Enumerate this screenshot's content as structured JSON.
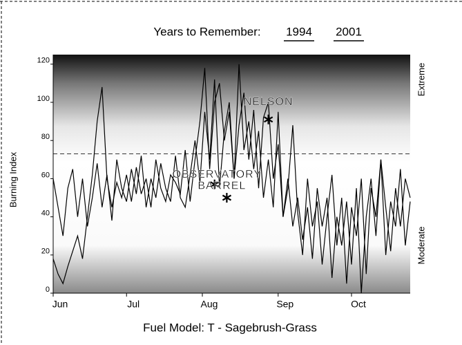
{
  "chart_data": {
    "type": "line",
    "title": "Years to Remember:",
    "ylabel": "Burning Index",
    "xlabel": "Fuel Model: T - Sagebrush-Grass",
    "right_labels": [
      "Extreme",
      "Moderate"
    ],
    "x": [
      0,
      2,
      4,
      6,
      8,
      10,
      12,
      14,
      16,
      18,
      20,
      22,
      24,
      26,
      28,
      30,
      32,
      34,
      36,
      38,
      40,
      42,
      44,
      46,
      48,
      50,
      52,
      54,
      56,
      58,
      60,
      62,
      64,
      66,
      68,
      70,
      72,
      74,
      76,
      78,
      80,
      82,
      84,
      86,
      88,
      90,
      92,
      94,
      96,
      98,
      100,
      102,
      104,
      106,
      108,
      110,
      112,
      114,
      116,
      118,
      120,
      122,
      124,
      126,
      128,
      130,
      132,
      134,
      136,
      138,
      140,
      142,
      144,
      146
    ],
    "series": [
      {
        "name": "1994",
        "color": "#000000",
        "values": [
          18,
          10,
          5,
          14,
          22,
          30,
          18,
          40,
          62,
          90,
          108,
          60,
          45,
          58,
          50,
          62,
          48,
          66,
          52,
          60,
          45,
          70,
          55,
          48,
          62,
          58,
          52,
          75,
          48,
          70,
          90,
          118,
          65,
          100,
          110,
          80,
          95,
          60,
          88,
          105,
          70,
          96,
          55,
          92,
          100,
          60,
          78,
          40,
          55,
          88,
          42,
          20,
          60,
          35,
          48,
          15,
          40,
          62,
          25,
          50,
          5,
          45,
          30,
          60,
          10,
          55,
          40,
          70,
          20,
          48,
          35,
          65,
          25,
          48
        ]
      },
      {
        "name": "2001",
        "color": "#000000",
        "values": [
          60,
          45,
          30,
          55,
          65,
          40,
          60,
          35,
          50,
          68,
          45,
          62,
          38,
          70,
          55,
          48,
          65,
          52,
          72,
          45,
          60,
          50,
          68,
          55,
          48,
          72,
          50,
          45,
          62,
          80,
          58,
          95,
          70,
          112,
          55,
          85,
          100,
          60,
          120,
          75,
          90,
          65,
          85,
          50,
          70,
          45,
          95,
          40,
          60,
          35,
          50,
          28,
          45,
          18,
          55,
          35,
          50,
          8,
          40,
          25,
          48,
          15,
          55,
          0,
          40,
          60,
          30,
          70,
          45,
          22,
          55,
          35,
          60,
          50
        ]
      }
    ],
    "xlim": [
      0,
      146
    ],
    "xticks": [
      {
        "value": 0,
        "label": "Jun"
      },
      {
        "value": 30,
        "label": "Jul"
      },
      {
        "value": 61,
        "label": "Aug"
      },
      {
        "value": 92,
        "label": "Sep"
      },
      {
        "value": 122,
        "label": "Oct"
      }
    ],
    "ylim": [
      0,
      125
    ],
    "yticks": [
      0,
      20,
      40,
      60,
      80,
      100,
      120
    ],
    "reference_line": 73,
    "annotations": [
      {
        "label": "NELSON",
        "x": 88,
        "y": 100,
        "marker_x": 88,
        "marker_y": 91
      },
      {
        "label": "OBSERVATORY",
        "x": 67,
        "y": 62,
        "marker_x": 66,
        "marker_y": 57
      },
      {
        "label": "BARREL",
        "x": 69,
        "y": 56,
        "marker_x": 71,
        "marker_y": 50
      }
    ]
  }
}
